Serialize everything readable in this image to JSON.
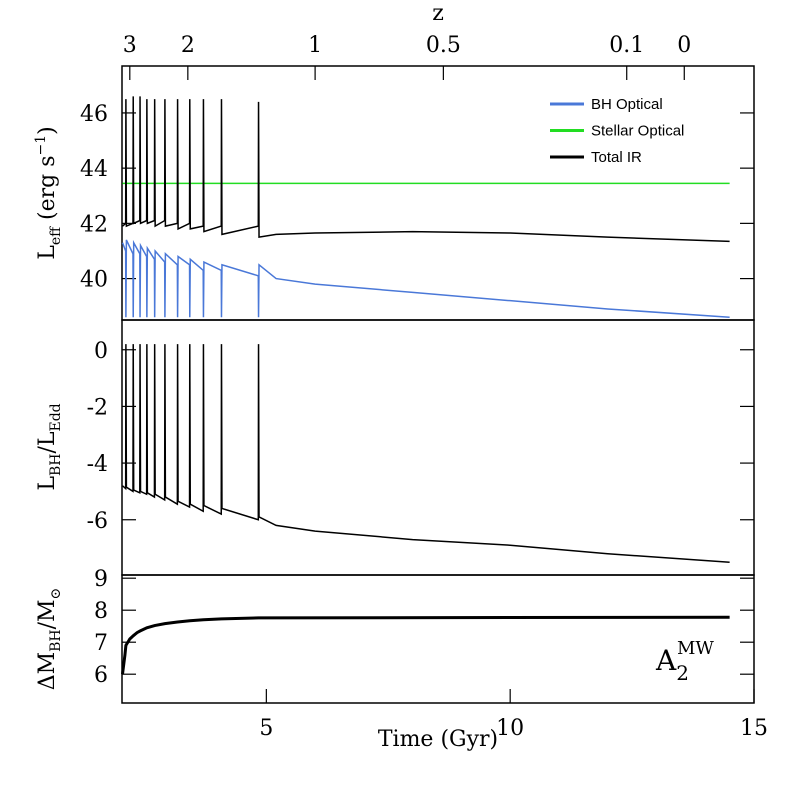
{
  "chart_data": [
    {
      "type": "line",
      "x2label": "z",
      "x2ticks": [
        {
          "value": 2.2,
          "label": "3"
        },
        {
          "value": 3.39,
          "label": "2"
        },
        {
          "value": 6.0,
          "label": "1"
        },
        {
          "value": 8.63,
          "label": "0.5"
        },
        {
          "value": 12.39,
          "label": "0.1"
        },
        {
          "value": 13.57,
          "label": "0"
        }
      ],
      "ylabel": [
        "L",
        "eff",
        " (erg s",
        "−1",
        ")"
      ],
      "xlim": [
        2.04,
        15
      ],
      "ylim": [
        38.5,
        47.7
      ],
      "yticks": [
        40,
        42,
        44,
        46
      ],
      "legend": "upper right",
      "series": [
        {
          "name": "BH Optical",
          "color": "#4a78d8",
          "x": [
            2.05,
            2.115,
            2.12,
            2.13,
            2.265,
            2.27,
            2.28,
            2.405,
            2.41,
            2.42,
            2.545,
            2.55,
            2.56,
            2.705,
            2.71,
            2.72,
            2.915,
            2.92,
            2.93,
            3.175,
            3.18,
            3.19,
            3.425,
            3.43,
            3.44,
            3.705,
            3.71,
            3.72,
            4.075,
            4.08,
            4.09,
            4.835,
            4.84,
            4.85,
            5.2,
            6,
            8,
            10,
            12,
            14.5
          ],
          "values": [
            41.3,
            41.0,
            38.6,
            41.4,
            40.9,
            38.6,
            41.3,
            40.9,
            38.6,
            41.2,
            40.8,
            38.6,
            41.1,
            40.7,
            38.6,
            41.0,
            40.6,
            38.6,
            40.9,
            40.5,
            38.6,
            40.8,
            40.5,
            38.6,
            40.7,
            40.3,
            38.6,
            40.6,
            40.3,
            38.6,
            40.5,
            40.1,
            38.6,
            40.5,
            40.0,
            39.8,
            39.5,
            39.2,
            38.9,
            38.6
          ]
        },
        {
          "name": "Stellar Optical",
          "color": "#22dd22",
          "x": [
            2.05,
            14.5
          ],
          "values": [
            43.45,
            43.45
          ]
        },
        {
          "name": "Total IR",
          "color": "#000000",
          "x": [
            2.05,
            2.115,
            2.12,
            2.13,
            2.265,
            2.27,
            2.28,
            2.405,
            2.41,
            2.42,
            2.545,
            2.55,
            2.56,
            2.705,
            2.71,
            2.72,
            2.915,
            2.92,
            2.93,
            3.175,
            3.18,
            3.19,
            3.425,
            3.43,
            3.44,
            3.705,
            3.71,
            3.72,
            4.075,
            4.08,
            4.09,
            4.835,
            4.84,
            4.85,
            5.2,
            6,
            8,
            10,
            12,
            14.5
          ],
          "values": [
            41.9,
            42.0,
            46.5,
            41.9,
            42.0,
            46.6,
            42.0,
            42.1,
            46.6,
            42.0,
            42.1,
            46.5,
            42.0,
            42.1,
            46.5,
            41.9,
            42.1,
            46.5,
            41.9,
            42.0,
            46.5,
            41.8,
            42.0,
            46.5,
            41.8,
            41.9,
            46.5,
            41.7,
            41.9,
            46.5,
            41.6,
            41.9,
            46.4,
            41.5,
            41.6,
            41.65,
            41.7,
            41.65,
            41.5,
            41.35
          ]
        }
      ]
    },
    {
      "type": "line",
      "ylabel": [
        "L",
        "BH",
        "/L",
        "Edd"
      ],
      "xlim": [
        2.04,
        15
      ],
      "ylim": [
        -7.95,
        1.05
      ],
      "yticks": [
        -6,
        -4,
        -2,
        0
      ],
      "series": [
        {
          "color": "#000000",
          "x": [
            2.05,
            2.115,
            2.12,
            2.13,
            2.265,
            2.27,
            2.28,
            2.405,
            2.41,
            2.42,
            2.545,
            2.55,
            2.56,
            2.705,
            2.71,
            2.72,
            2.915,
            2.92,
            2.93,
            3.175,
            3.18,
            3.19,
            3.425,
            3.43,
            3.44,
            3.705,
            3.71,
            3.72,
            4.075,
            4.08,
            4.09,
            4.835,
            4.84,
            4.85,
            5.2,
            6,
            8,
            10,
            12,
            14.5
          ],
          "values": [
            -4.8,
            -4.9,
            0.2,
            -4.85,
            -5.0,
            0.2,
            -4.95,
            -5.05,
            0.2,
            -5.0,
            -5.1,
            0.2,
            -5.05,
            -5.2,
            0.2,
            -5.1,
            -5.3,
            0.2,
            -5.2,
            -5.45,
            0.2,
            -5.35,
            -5.55,
            0.2,
            -5.45,
            -5.7,
            0.2,
            -5.5,
            -5.8,
            0.2,
            -5.6,
            -6.0,
            0.2,
            -5.9,
            -6.2,
            -6.4,
            -6.7,
            -6.9,
            -7.2,
            -7.5
          ]
        }
      ]
    },
    {
      "type": "line",
      "ylabel": [
        "ΔM",
        "BH",
        "/M",
        "⊙"
      ],
      "xlabel": "Time (Gyr)",
      "annotation": [
        "A",
        "2",
        "MW"
      ],
      "xlim": [
        2.04,
        15
      ],
      "xticks": [
        5,
        10,
        15
      ],
      "ylim": [
        5.1,
        9.1
      ],
      "yticks": [
        6,
        7,
        8,
        9
      ],
      "series": [
        {
          "color": "#000000",
          "x": [
            2.05,
            2.1,
            2.12,
            2.2,
            2.27,
            2.35,
            2.41,
            2.55,
            2.71,
            2.92,
            3.18,
            3.43,
            3.71,
            4.08,
            4.84,
            14.5
          ],
          "values": [
            6.0,
            6.6,
            6.9,
            7.1,
            7.2,
            7.3,
            7.35,
            7.45,
            7.52,
            7.58,
            7.63,
            7.67,
            7.7,
            7.73,
            7.76,
            7.78
          ]
        }
      ]
    }
  ]
}
